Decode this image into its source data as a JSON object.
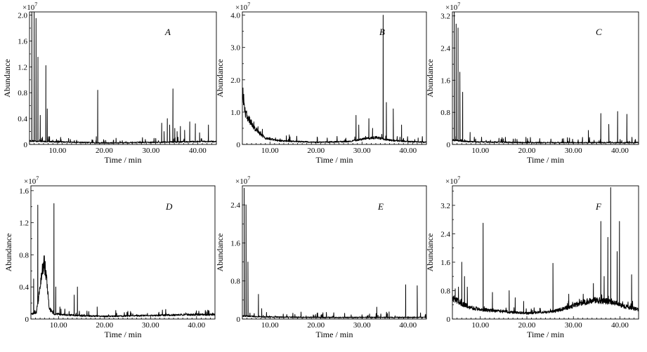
{
  "chart_data": [
    {
      "type": "line",
      "panel_label": "A",
      "multiplier_label": "×10",
      "multiplier_exp": "7",
      "xlabel": "Time / min",
      "ylabel": "Abundance",
      "xlim": [
        4,
        44
      ],
      "ylim": [
        0,
        2.05
      ],
      "xticks": [
        10,
        20,
        30,
        40
      ],
      "xtick_labels": [
        "10.00",
        "20.00",
        "30.00",
        "40.00"
      ],
      "yticks": [
        0,
        0.4,
        0.8,
        1.2,
        1.6,
        2.0
      ],
      "ytick_labels": [
        "0",
        "0.4",
        "0.8",
        "1.2",
        "1.6",
        "2.0"
      ],
      "baseline": [
        [
          4,
          0.05
        ],
        [
          8,
          0.04
        ],
        [
          20,
          0.02
        ],
        [
          32,
          0.03
        ],
        [
          40,
          0.04
        ],
        [
          44,
          0.04
        ]
      ],
      "peaks": [
        [
          4.5,
          2.05
        ],
        [
          5.0,
          2.05
        ],
        [
          5.4,
          1.95
        ],
        [
          5.8,
          1.35
        ],
        [
          6.3,
          0.45
        ],
        [
          7.5,
          1.22
        ],
        [
          7.8,
          0.55
        ],
        [
          8.3,
          0.12
        ],
        [
          10,
          0.06
        ],
        [
          18.6,
          0.84
        ],
        [
          18.3,
          0.12
        ],
        [
          32.3,
          0.33
        ],
        [
          32.8,
          0.2
        ],
        [
          33.5,
          0.4
        ],
        [
          34.0,
          0.3
        ],
        [
          34.7,
          0.86
        ],
        [
          35.1,
          0.25
        ],
        [
          35.6,
          0.2
        ],
        [
          36.3,
          0.28
        ],
        [
          37.2,
          0.22
        ],
        [
          38.3,
          0.35
        ],
        [
          39.5,
          0.32
        ],
        [
          40.4,
          0.18
        ],
        [
          42.3,
          0.3
        ]
      ]
    },
    {
      "type": "line",
      "panel_label": "B",
      "multiplier_label": "×10",
      "multiplier_exp": "7",
      "xlabel": "Time / min",
      "ylabel": "Abundance",
      "xlim": [
        4,
        44
      ],
      "ylim": [
        0,
        4.1
      ],
      "xticks": [
        10,
        20,
        30,
        40
      ],
      "xtick_labels": [
        "10.00",
        "20.00",
        "30.00",
        "40.00"
      ],
      "yticks": [
        0,
        1.0,
        2.0,
        3.0,
        4.0
      ],
      "ytick_labels": [
        "0",
        "1.0",
        "2.0",
        "3.0",
        "4.0"
      ],
      "baseline": [
        [
          4,
          1.55
        ],
        [
          4.6,
          0.9
        ],
        [
          5.5,
          0.7
        ],
        [
          6.5,
          0.5
        ],
        [
          7.5,
          0.35
        ],
        [
          9,
          0.18
        ],
        [
          12,
          0.1
        ],
        [
          20,
          0.06
        ],
        [
          27,
          0.08
        ],
        [
          30,
          0.15
        ],
        [
          33,
          0.2
        ],
        [
          36,
          0.12
        ],
        [
          40,
          0.08
        ],
        [
          44,
          0.06
        ]
      ],
      "peaks": [
        [
          4.3,
          1.55
        ],
        [
          5.6,
          0.85
        ],
        [
          6.5,
          0.7
        ],
        [
          7.4,
          0.55
        ],
        [
          14.2,
          0.3
        ],
        [
          28.7,
          0.9
        ],
        [
          29.3,
          0.6
        ],
        [
          31.5,
          0.8
        ],
        [
          32.3,
          0.5
        ],
        [
          34.6,
          4.0
        ],
        [
          35.3,
          1.3
        ],
        [
          36.8,
          1.1
        ],
        [
          38.6,
          0.6
        ],
        [
          42.2,
          0.2
        ]
      ]
    },
    {
      "type": "line",
      "panel_label": "C",
      "multiplier_label": "×10",
      "multiplier_exp": "7",
      "xlabel": "Time / min",
      "ylabel": "Abundance",
      "xlim": [
        4,
        44
      ],
      "ylim": [
        0,
        3.3
      ],
      "xticks": [
        10,
        20,
        30,
        40
      ],
      "xtick_labels": [
        "10.00",
        "20.00",
        "30.00",
        "40.00"
      ],
      "yticks": [
        0,
        0.8,
        1.6,
        2.4,
        3.2
      ],
      "ytick_labels": [
        "0",
        "0.8",
        "1.6",
        "2.4",
        "3.2"
      ],
      "baseline": [
        [
          4,
          0.1
        ],
        [
          8,
          0.06
        ],
        [
          20,
          0.04
        ],
        [
          44,
          0.04
        ]
      ],
      "peaks": [
        [
          4.4,
          3.3
        ],
        [
          4.8,
          3.0
        ],
        [
          5.2,
          2.9
        ],
        [
          5.6,
          1.8
        ],
        [
          6.2,
          1.3
        ],
        [
          7.8,
          0.3
        ],
        [
          17.5,
          0.14
        ],
        [
          19.8,
          0.18
        ],
        [
          33.2,
          0.35
        ],
        [
          35.9,
          0.77
        ],
        [
          37.6,
          0.5
        ],
        [
          39.5,
          0.82
        ],
        [
          41.5,
          0.75
        ]
      ]
    },
    {
      "type": "line",
      "panel_label": "D",
      "multiplier_label": "×10",
      "multiplier_exp": "7",
      "xlabel": "Time / min",
      "ylabel": "Abundance",
      "xlim": [
        4,
        44
      ],
      "ylim": [
        0,
        1.66
      ],
      "xticks": [
        10,
        20,
        30,
        40
      ],
      "xtick_labels": [
        "10.00",
        "20.00",
        "30.00",
        "40.00"
      ],
      "yticks": [
        0,
        0.4,
        0.8,
        1.2,
        1.6
      ],
      "ytick_labels": [
        "0",
        "0.4",
        "0.8",
        "1.2",
        "1.6"
      ],
      "baseline": [
        [
          4,
          0.05
        ],
        [
          5.2,
          0.08
        ],
        [
          6.2,
          0.45
        ],
        [
          6.8,
          0.68
        ],
        [
          7.4,
          0.5
        ],
        [
          8,
          0.12
        ],
        [
          9,
          0.06
        ],
        [
          14,
          0.04
        ],
        [
          20,
          0.03
        ],
        [
          30,
          0.04
        ],
        [
          38,
          0.05
        ],
        [
          44,
          0.05
        ]
      ],
      "peaks": [
        [
          4.6,
          0.5
        ],
        [
          5.5,
          1.42
        ],
        [
          9.0,
          1.44
        ],
        [
          9.4,
          0.4
        ],
        [
          10.3,
          0.15
        ],
        [
          13.4,
          0.3
        ],
        [
          14.1,
          0.4
        ],
        [
          18.4,
          0.15
        ],
        [
          33.3,
          0.12
        ]
      ]
    },
    {
      "type": "line",
      "panel_label": "E",
      "multiplier_label": "×10",
      "multiplier_exp": "7",
      "xlabel": "Time / min",
      "ylabel": "Abundance",
      "xlim": [
        4,
        44
      ],
      "ylim": [
        0,
        2.8
      ],
      "xticks": [
        10,
        20,
        30,
        40
      ],
      "xtick_labels": [
        "10.00",
        "20.00",
        "30.00",
        "40.00"
      ],
      "yticks": [
        0,
        0.8,
        1.6,
        2.4
      ],
      "ytick_labels": [
        "0",
        "0.8",
        "1.6",
        "2.4"
      ],
      "baseline": [
        [
          4,
          0.06
        ],
        [
          8,
          0.04
        ],
        [
          20,
          0.03
        ],
        [
          44,
          0.03
        ]
      ],
      "peaks": [
        [
          4.4,
          2.75
        ],
        [
          4.8,
          2.4
        ],
        [
          5.2,
          1.2
        ],
        [
          7.5,
          0.52
        ],
        [
          8.2,
          0.22
        ],
        [
          33.2,
          0.25
        ],
        [
          35.9,
          0.15
        ],
        [
          39.5,
          0.72
        ],
        [
          42.0,
          0.7
        ]
      ]
    },
    {
      "type": "line",
      "panel_label": "F",
      "multiplier_label": "×10",
      "multiplier_exp": "7",
      "xlabel": "Time / min",
      "ylabel": "Abundance",
      "xlim": [
        4,
        44
      ],
      "ylim": [
        0,
        3.75
      ],
      "xticks": [
        10,
        20,
        30,
        40
      ],
      "xtick_labels": [
        "10.00",
        "20.00",
        "30.00",
        "40.00"
      ],
      "yticks": [
        0,
        0.8,
        1.6,
        2.4,
        3.2
      ],
      "ytick_labels": [
        "0",
        "0.8",
        "1.6",
        "2.4",
        "3.2"
      ],
      "baseline": [
        [
          4,
          0.55
        ],
        [
          6,
          0.4
        ],
        [
          8,
          0.3
        ],
        [
          10,
          0.25
        ],
        [
          14,
          0.2
        ],
        [
          20,
          0.15
        ],
        [
          26,
          0.2
        ],
        [
          30,
          0.35
        ],
        [
          34,
          0.5
        ],
        [
          38,
          0.45
        ],
        [
          42,
          0.3
        ],
        [
          44,
          0.25
        ]
      ],
      "peaks": [
        [
          4.6,
          0.85
        ],
        [
          5.3,
          0.9
        ],
        [
          6.0,
          1.6
        ],
        [
          6.6,
          1.2
        ],
        [
          7.2,
          0.9
        ],
        [
          10.6,
          2.7
        ],
        [
          12.6,
          0.75
        ],
        [
          16.2,
          0.8
        ],
        [
          17.5,
          0.6
        ],
        [
          19.3,
          0.5
        ],
        [
          25.6,
          1.57
        ],
        [
          29.0,
          0.7
        ],
        [
          32.1,
          0.7
        ],
        [
          34.3,
          1.0
        ],
        [
          35.9,
          2.75
        ],
        [
          36.6,
          1.2
        ],
        [
          37.4,
          2.3
        ],
        [
          38.0,
          3.7
        ],
        [
          39.4,
          1.9
        ],
        [
          39.9,
          2.75
        ],
        [
          42.5,
          1.25
        ]
      ]
    }
  ]
}
